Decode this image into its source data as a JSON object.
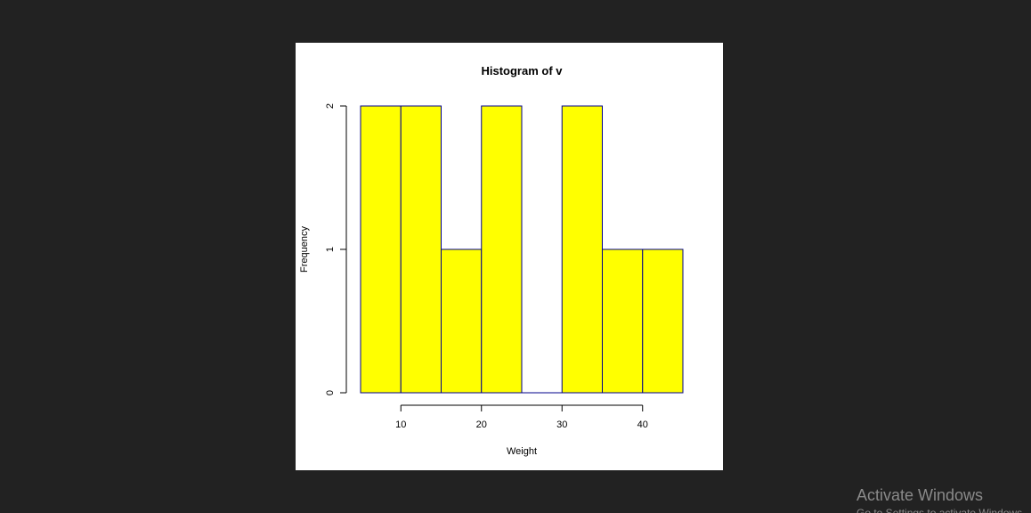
{
  "chart_data": {
    "type": "bar",
    "title": "Histogram of v",
    "xlabel": "Weight",
    "ylabel": "Frequency",
    "bins": [
      [
        5,
        10
      ],
      [
        10,
        15
      ],
      [
        15,
        20
      ],
      [
        20,
        25
      ],
      [
        25,
        30
      ],
      [
        30,
        35
      ],
      [
        35,
        40
      ],
      [
        40,
        45
      ]
    ],
    "values": [
      2,
      2,
      1,
      2,
      0,
      2,
      1,
      1
    ],
    "xticks": [
      10,
      20,
      30,
      40
    ],
    "yticks": [
      0,
      1,
      2
    ],
    "xlim": [
      5,
      45
    ],
    "ylim": [
      0,
      2
    ],
    "bar_fill": "#ffff00",
    "bar_edge": "#00008b",
    "grid": false
  },
  "overlay": {
    "watermark": "Activate Windows",
    "watermark_sub": "Go to Settings to activate Windows."
  },
  "colors": {
    "background": "#222222",
    "panel": "#ffffff"
  }
}
